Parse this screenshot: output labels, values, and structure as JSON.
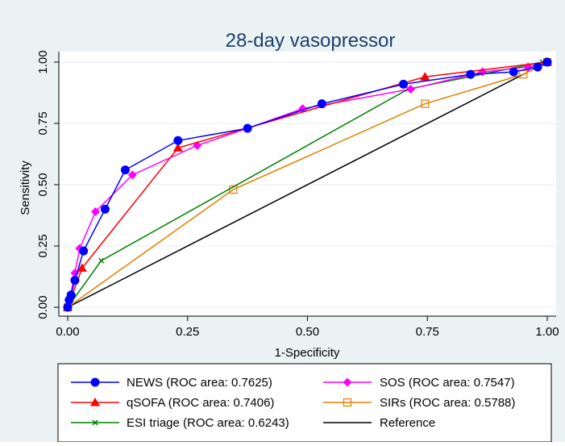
{
  "chart_data": {
    "type": "line",
    "title": "28-day vasopressor",
    "xlabel": "1-Specificity",
    "ylabel": "Sensitivity",
    "xlim": [
      0,
      1
    ],
    "ylim": [
      0,
      1
    ],
    "x_ticks": [
      "0.00",
      "0.25",
      "0.50",
      "0.75",
      "1.00"
    ],
    "y_ticks": [
      "0.00",
      "0.25",
      "0.50",
      "0.75",
      "1.00"
    ],
    "grid": true,
    "legend_position": "bottom",
    "series": [
      {
        "name": "NEWS (ROC area: 0.7625)",
        "color": "#0000ff",
        "marker": "circle",
        "points": [
          [
            0,
            0
          ],
          [
            0.003,
            0.03
          ],
          [
            0.007,
            0.05
          ],
          [
            0.015,
            0.11
          ],
          [
            0.033,
            0.23
          ],
          [
            0.078,
            0.4
          ],
          [
            0.12,
            0.56
          ],
          [
            0.23,
            0.68
          ],
          [
            0.375,
            0.73
          ],
          [
            0.53,
            0.83
          ],
          [
            0.7,
            0.91
          ],
          [
            0.84,
            0.95
          ],
          [
            0.93,
            0.96
          ],
          [
            0.98,
            0.98
          ],
          [
            1,
            1
          ]
        ]
      },
      {
        "name": "SOS (ROC area: 0.7547)",
        "color": "#ff00ff",
        "marker": "diamond",
        "points": [
          [
            0,
            0
          ],
          [
            0.005,
            0.04
          ],
          [
            0.015,
            0.14
          ],
          [
            0.025,
            0.24
          ],
          [
            0.058,
            0.39
          ],
          [
            0.135,
            0.54
          ],
          [
            0.27,
            0.66
          ],
          [
            0.375,
            0.73
          ],
          [
            0.49,
            0.81
          ],
          [
            0.715,
            0.89
          ],
          [
            0.865,
            0.96
          ],
          [
            0.96,
            0.98
          ],
          [
            1,
            1
          ]
        ]
      },
      {
        "name": "qSOFA (ROC area: 0.7406)",
        "color": "#ff0000",
        "marker": "triangle",
        "points": [
          [
            0,
            0
          ],
          [
            0.03,
            0.16
          ],
          [
            0.23,
            0.65
          ],
          [
            0.745,
            0.94
          ],
          [
            1,
            1
          ]
        ]
      },
      {
        "name": "SIRs (ROC area: 0.5788)",
        "color": "#e08000",
        "marker": "square",
        "points": [
          [
            0,
            0
          ],
          [
            0.345,
            0.48
          ],
          [
            0.745,
            0.83
          ],
          [
            0.95,
            0.95
          ],
          [
            1,
            1
          ]
        ]
      },
      {
        "name": "ESI triage (ROC area: 0.6243)",
        "color": "#008000",
        "marker": "x",
        "points": [
          [
            0,
            0
          ],
          [
            0.07,
            0.19
          ],
          [
            0.71,
            0.89
          ],
          [
            0.99,
            1.0
          ],
          [
            1,
            1
          ]
        ]
      },
      {
        "name": "Reference",
        "color": "#000000",
        "marker": "none",
        "points": [
          [
            0,
            0
          ],
          [
            1,
            1
          ]
        ]
      }
    ]
  }
}
